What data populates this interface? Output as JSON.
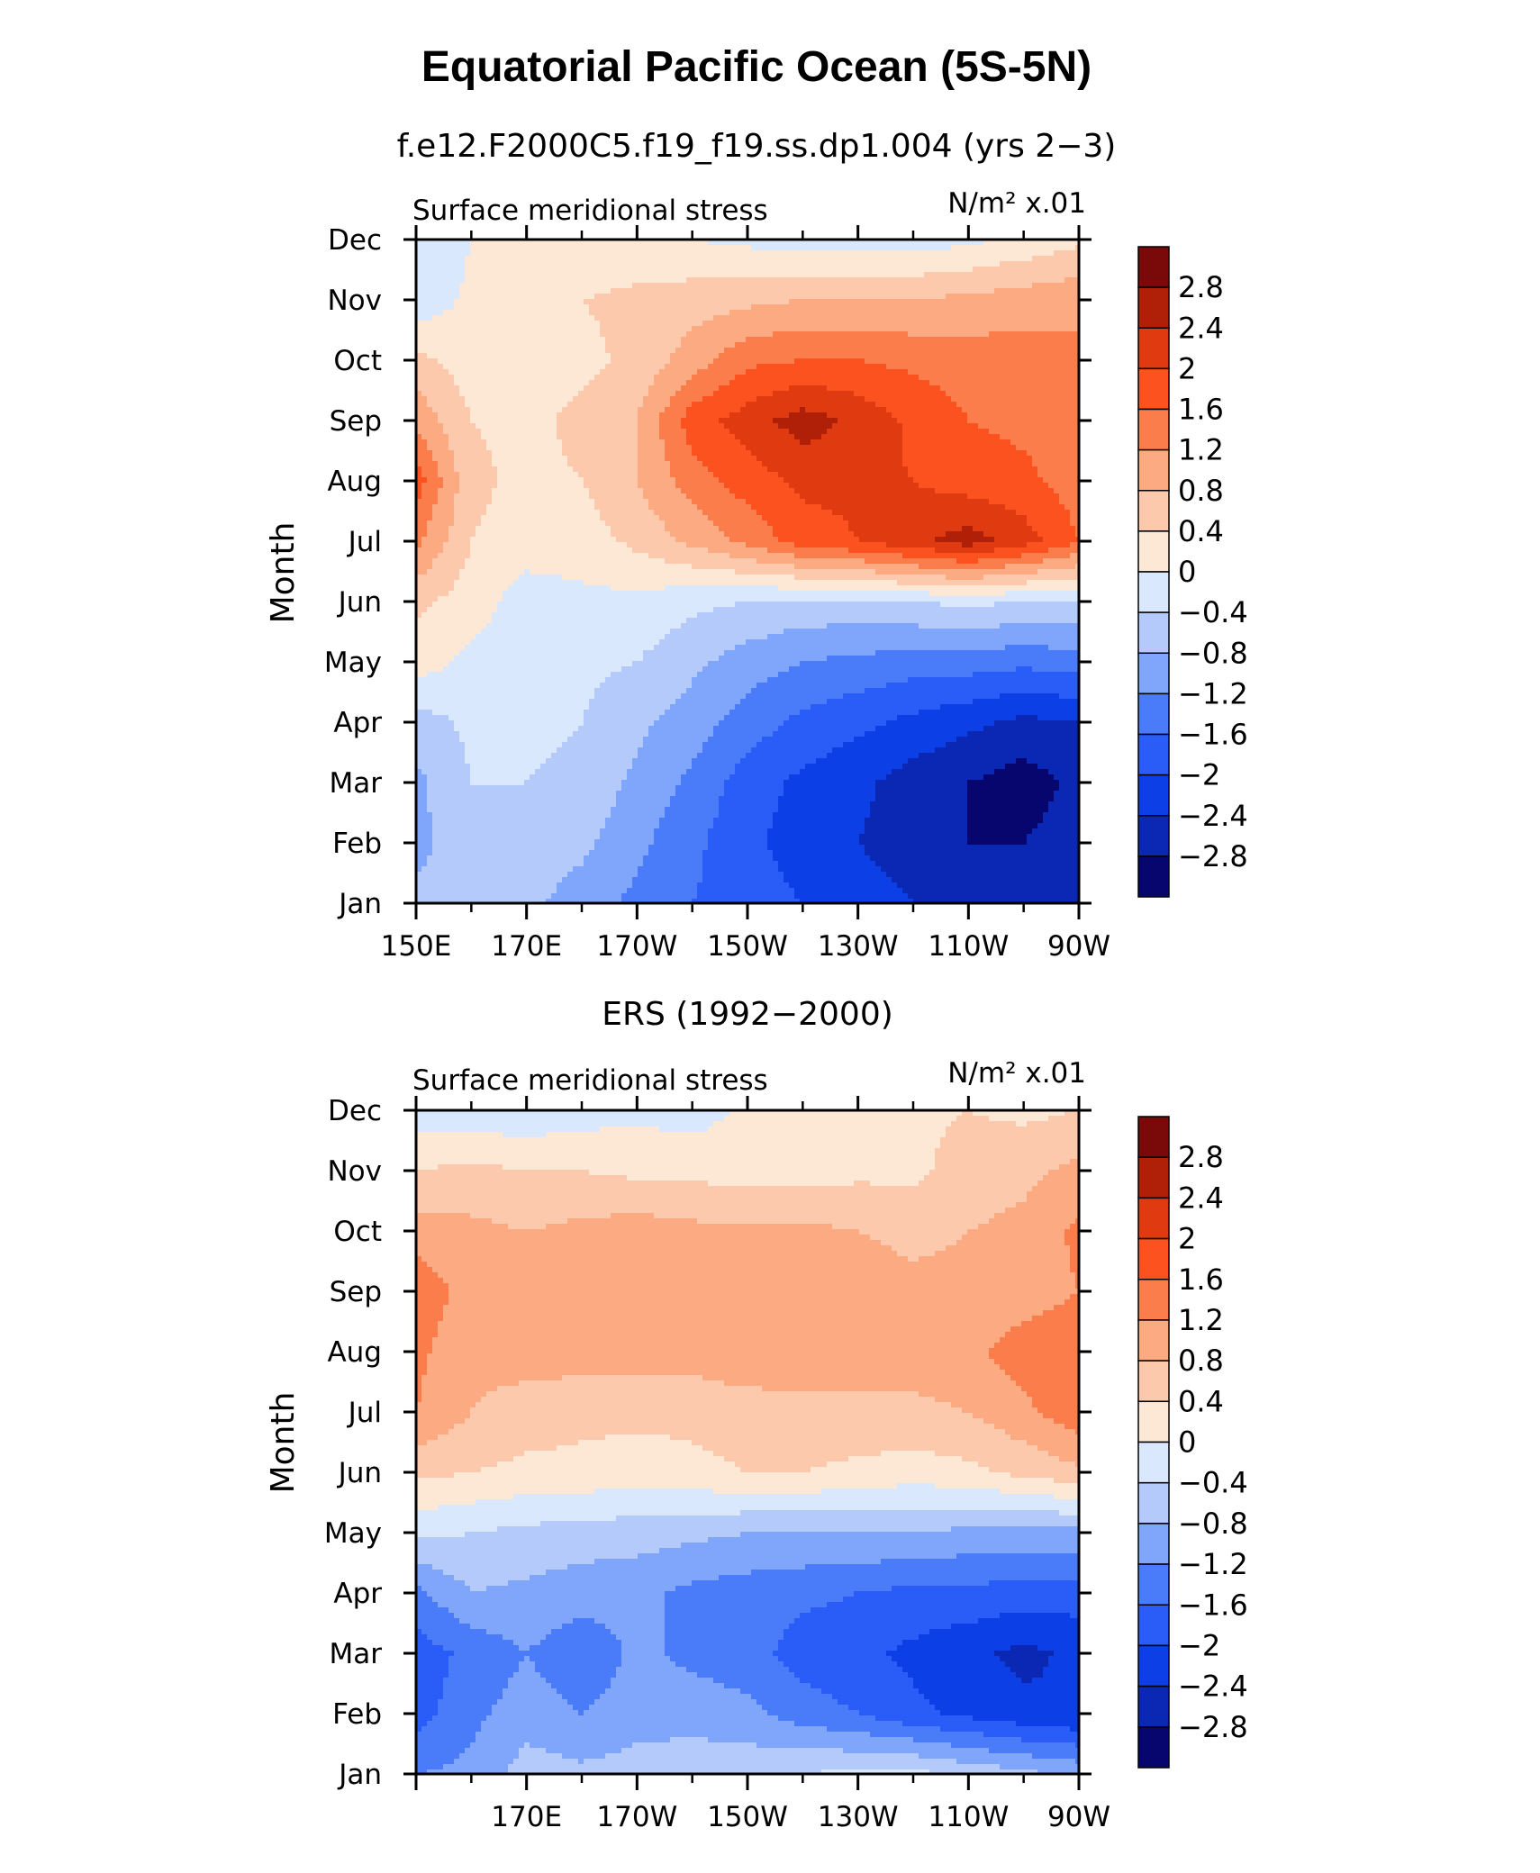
{
  "figure": {
    "title": "Equatorial Pacific Ocean (5S-5N)"
  },
  "panels": [
    {
      "case_title": "f.e12.F2000C5.f19_f19.ss.dp1.004 (yrs 2−3)",
      "left_label": "Surface meridional stress",
      "right_label": "N/m² x.01",
      "ylabel": "Month",
      "xtick_labels": [
        "150E",
        "170E",
        "170W",
        "150W",
        "130W",
        "110W",
        "90W"
      ]
    },
    {
      "case_title": "ERS (1992−2000)",
      "left_label": "Surface meridional stress",
      "right_label": "N/m² x.01",
      "ylabel": "Month",
      "xtick_labels": [
        "",
        "170E",
        "170W",
        "150W",
        "130W",
        "110W",
        "90W"
      ]
    }
  ],
  "chart_data": [
    {
      "type": "heatmap",
      "title": "f.e12.F2000C5.f19_f19.ss.dp1.004 (yrs 2−3)",
      "xlabel": "",
      "ylabel": "Month",
      "x": [
        150,
        160,
        170,
        180,
        190,
        200,
        210,
        220,
        230,
        240,
        250,
        260,
        270
      ],
      "x_tick_values": [
        150,
        170,
        190,
        210,
        230,
        250,
        270
      ],
      "x_tick_labels": [
        "150E",
        "170E",
        "170W",
        "150W",
        "130W",
        "110W",
        "90W"
      ],
      "xlim": [
        150,
        270
      ],
      "y": [
        "Jan",
        "Feb",
        "Mar",
        "Apr",
        "May",
        "Jun",
        "Jul",
        "Aug",
        "Sep",
        "Oct",
        "Nov",
        "Dec"
      ],
      "z": [
        [
          -0.7,
          -0.7,
          -0.7,
          -1.0,
          -1.3,
          -1.6,
          -1.8,
          -2.0,
          -2.2,
          -2.4,
          -2.6,
          -2.7,
          -2.5
        ],
        [
          -0.9,
          -0.6,
          -0.5,
          -0.7,
          -1.1,
          -1.5,
          -1.9,
          -2.2,
          -2.4,
          -2.6,
          -2.8,
          -2.8,
          -2.6
        ],
        [
          -0.9,
          -0.4,
          -0.4,
          -0.5,
          -0.9,
          -1.3,
          -1.8,
          -2.1,
          -2.3,
          -2.6,
          -2.8,
          -3.0,
          -2.7
        ],
        [
          -0.6,
          -0.3,
          -0.3,
          -0.4,
          -0.7,
          -1.0,
          -1.4,
          -1.7,
          -1.9,
          -2.1,
          -2.3,
          -2.5,
          -2.4
        ],
        [
          0.2,
          -0.1,
          -0.2,
          -0.3,
          -0.4,
          -0.7,
          -1.0,
          -1.2,
          -1.3,
          -1.4,
          -1.4,
          -1.5,
          -1.4
        ],
        [
          0.5,
          0.2,
          -0.2,
          -0.1,
          -0.1,
          -0.3,
          -0.4,
          -0.5,
          -0.5,
          -0.4,
          -0.3,
          -0.4,
          -0.4
        ],
        [
          1.3,
          0.4,
          0.2,
          0.2,
          0.5,
          0.9,
          1.3,
          1.8,
          2.0,
          2.3,
          2.6,
          2.2,
          1.6
        ],
        [
          1.8,
          0.5,
          0.3,
          0.4,
          0.8,
          1.4,
          1.8,
          2.1,
          2.1,
          2.0,
          1.8,
          1.7,
          1.4
        ],
        [
          1.1,
          0.4,
          0.3,
          0.5,
          0.8,
          1.8,
          2.2,
          2.6,
          2.3,
          1.9,
          1.6,
          1.5,
          1.4
        ],
        [
          0.5,
          0.2,
          0.2,
          0.3,
          0.5,
          1.0,
          1.5,
          1.6,
          1.6,
          1.5,
          1.4,
          1.4,
          1.3
        ],
        [
          -0.3,
          0.1,
          0.2,
          0.4,
          0.5,
          0.6,
          0.7,
          0.8,
          0.8,
          0.8,
          0.9,
          1.0,
          1.1
        ],
        [
          -0.4,
          0.0,
          0.1,
          0.1,
          0.1,
          0.0,
          -0.1,
          -0.2,
          -0.2,
          -0.2,
          -0.1,
          0.1,
          0.3
        ]
      ]
    },
    {
      "type": "heatmap",
      "title": "ERS (1992−2000)",
      "xlabel": "",
      "ylabel": "Month",
      "x": [
        150,
        160,
        170,
        180,
        190,
        200,
        210,
        220,
        230,
        240,
        250,
        260,
        270
      ],
      "x_tick_values": [
        150,
        170,
        190,
        210,
        230,
        250,
        270
      ],
      "x_tick_labels": [
        "",
        "170E",
        "170W",
        "150W",
        "130W",
        "110W",
        "90W"
      ],
      "xlim": [
        150,
        270
      ],
      "y": [
        "Jan",
        "Feb",
        "Mar",
        "Apr",
        "May",
        "Jun",
        "Jul",
        "Aug",
        "Sep",
        "Oct",
        "Nov",
        "Dec"
      ],
      "z": [
        [
          -1.2,
          -1.1,
          -0.6,
          -0.7,
          -0.6,
          -0.5,
          -0.5,
          -0.4,
          -0.3,
          -0.3,
          -0.5,
          -0.7,
          -0.9
        ],
        [
          -1.8,
          -1.3,
          -1.0,
          -1.2,
          -1.0,
          -1.0,
          -1.1,
          -1.4,
          -1.6,
          -1.9,
          -2.1,
          -2.3,
          -2.4
        ],
        [
          -1.8,
          -1.5,
          -1.2,
          -1.5,
          -1.1,
          -1.3,
          -1.4,
          -1.8,
          -1.9,
          -2.1,
          -2.3,
          -2.5,
          -2.3
        ],
        [
          -1.3,
          -0.8,
          -0.9,
          -1.0,
          -1.1,
          -1.3,
          -1.4,
          -1.5,
          -1.6,
          -1.7,
          -1.7,
          -1.8,
          -1.8
        ],
        [
          -0.3,
          -0.4,
          -0.5,
          -0.6,
          -0.6,
          -0.7,
          -0.8,
          -0.8,
          -0.8,
          -0.8,
          -0.9,
          -0.9,
          -0.9
        ],
        [
          0.5,
          0.4,
          0.3,
          0.3,
          0.2,
          0.3,
          0.4,
          0.4,
          0.3,
          0.2,
          0.3,
          0.5,
          0.7
        ],
        [
          1.2,
          0.8,
          0.6,
          0.5,
          0.5,
          0.5,
          0.6,
          0.7,
          0.7,
          0.7,
          0.8,
          1.1,
          1.5
        ],
        [
          1.3,
          0.9,
          1.0,
          1.0,
          1.0,
          1.0,
          1.1,
          1.0,
          1.0,
          1.0,
          1.1,
          1.4,
          1.5
        ],
        [
          1.5,
          1.0,
          0.9,
          1.1,
          1.1,
          1.0,
          1.0,
          1.0,
          1.0,
          0.9,
          0.9,
          1.0,
          1.2
        ],
        [
          1.0,
          0.9,
          0.8,
          0.9,
          1.0,
          0.9,
          0.9,
          0.9,
          0.8,
          0.7,
          0.8,
          0.9,
          1.3
        ],
        [
          0.4,
          0.5,
          0.4,
          0.4,
          0.3,
          0.3,
          0.2,
          0.2,
          0.3,
          0.3,
          0.6,
          0.7,
          0.9
        ],
        [
          -0.2,
          -0.3,
          -0.3,
          -0.2,
          -0.1,
          -0.2,
          0.1,
          0.2,
          0.2,
          0.3,
          0.4,
          0.3,
          0.4
        ]
      ]
    }
  ],
  "colorbar": {
    "levels": [
      -2.8,
      -2.4,
      -2,
      -1.6,
      -1.2,
      -0.8,
      -0.4,
      0,
      0.4,
      0.8,
      1.2,
      1.6,
      2,
      2.4,
      2.8
    ],
    "labels": [
      "2.8",
      "2.4",
      "2",
      "1.6",
      "1.2",
      "0.8",
      "0.4",
      "0",
      "−0.4",
      "−0.8",
      "−1.2",
      "−1.6",
      "−2",
      "−2.4",
      "−2.8"
    ],
    "colors": [
      "#06066e",
      "#0a28b4",
      "#0c40e6",
      "#2a5cf8",
      "#4a7cfa",
      "#7fa6fb",
      "#b3cafb",
      "#d9e8fd",
      "#fde8d6",
      "#fcc9ac",
      "#fcaa82",
      "#fb7d4c",
      "#fb5220",
      "#e03a10",
      "#b02008",
      "#7a0a0a"
    ]
  }
}
